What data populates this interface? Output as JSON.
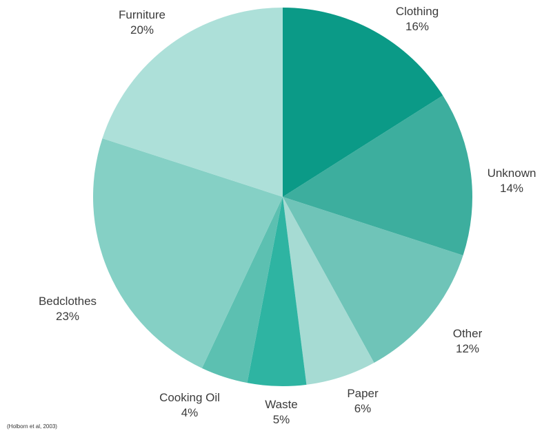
{
  "chart_data": {
    "type": "pie",
    "slices": [
      {
        "label": "Clothing",
        "value": 16,
        "value_label": "16%",
        "color": "#0b9a87"
      },
      {
        "label": "Unknown",
        "value": 14,
        "value_label": "14%",
        "color": "#3dae9e"
      },
      {
        "label": "Other",
        "value": 12,
        "value_label": "12%",
        "color": "#6fc4b8"
      },
      {
        "label": "Paper",
        "value": 6,
        "value_label": "6%",
        "color": "#a6dbd3"
      },
      {
        "label": "Waste",
        "value": 5,
        "value_label": "5%",
        "color": "#2eb4a2"
      },
      {
        "label": "Cooking Oil",
        "value": 4,
        "value_label": "4%",
        "color": "#5cc0b1"
      },
      {
        "label": "Bedclothes",
        "value": 23,
        "value_label": "23%",
        "color": "#85d0c5"
      },
      {
        "label": "Furniture",
        "value": 20,
        "value_label": "20%",
        "color": "#ade0d9"
      }
    ],
    "start_angle": "12 o'clock",
    "direction": "clockwise",
    "source_note": "(Holborn et al, 2003)"
  }
}
